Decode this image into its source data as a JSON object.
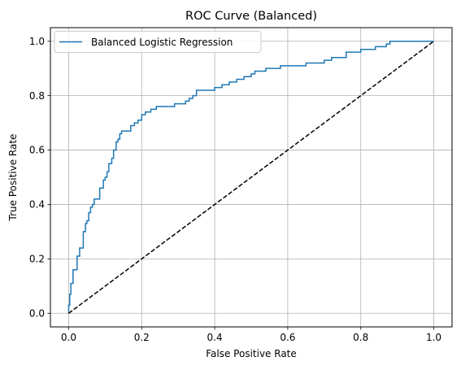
{
  "chart_data": {
    "type": "line",
    "title": "ROC Curve (Balanced)",
    "xlabel": "False Positive Rate",
    "ylabel": "True Positive Rate",
    "xlim": [
      -0.05,
      1.05
    ],
    "ylim": [
      -0.05,
      1.05
    ],
    "xticks": [
      0.0,
      0.2,
      0.4,
      0.6,
      0.8,
      1.0
    ],
    "yticks": [
      0.0,
      0.2,
      0.4,
      0.6,
      0.8,
      1.0
    ],
    "xtick_labels": [
      "0.0",
      "0.2",
      "0.4",
      "0.6",
      "0.8",
      "1.0"
    ],
    "ytick_labels": [
      "0.0",
      "0.2",
      "0.4",
      "0.6",
      "0.8",
      "1.0"
    ],
    "grid": true,
    "legend_position": "upper-left",
    "series": [
      {
        "name": "Balanced Logistic Regression",
        "color": "#1f77b4",
        "style": "solid",
        "x": [
          0.0,
          0.0,
          0.003,
          0.003,
          0.006,
          0.006,
          0.012,
          0.012,
          0.023,
          0.023,
          0.03,
          0.03,
          0.04,
          0.04,
          0.046,
          0.046,
          0.05,
          0.05,
          0.055,
          0.055,
          0.06,
          0.06,
          0.065,
          0.065,
          0.07,
          0.07,
          0.075,
          0.075,
          0.085,
          0.085,
          0.095,
          0.095,
          0.1,
          0.1,
          0.105,
          0.105,
          0.11,
          0.11,
          0.118,
          0.118,
          0.123,
          0.123,
          0.13,
          0.13,
          0.135,
          0.135,
          0.14,
          0.14,
          0.145,
          0.145,
          0.15,
          0.15,
          0.17,
          0.17,
          0.18,
          0.18,
          0.19,
          0.19,
          0.2,
          0.2,
          0.21,
          0.21,
          0.225,
          0.225,
          0.24,
          0.24,
          0.29,
          0.29,
          0.32,
          0.32,
          0.33,
          0.33,
          0.34,
          0.34,
          0.35,
          0.35,
          0.4,
          0.4,
          0.42,
          0.42,
          0.44,
          0.44,
          0.46,
          0.46,
          0.48,
          0.48,
          0.5,
          0.5,
          0.51,
          0.51,
          0.52,
          0.52,
          0.54,
          0.54,
          0.58,
          0.58,
          0.65,
          0.65,
          0.7,
          0.7,
          0.72,
          0.72,
          0.76,
          0.76,
          0.8,
          0.8,
          0.84,
          0.84,
          0.87,
          0.87,
          0.88,
          0.88,
          0.89,
          0.89,
          1.0
        ],
        "y": [
          0.0,
          0.03,
          0.03,
          0.07,
          0.07,
          0.11,
          0.11,
          0.16,
          0.16,
          0.21,
          0.21,
          0.24,
          0.24,
          0.3,
          0.3,
          0.33,
          0.33,
          0.34,
          0.34,
          0.37,
          0.37,
          0.39,
          0.39,
          0.4,
          0.4,
          0.42,
          0.42,
          0.42,
          0.42,
          0.46,
          0.46,
          0.49,
          0.49,
          0.5,
          0.5,
          0.52,
          0.52,
          0.55,
          0.55,
          0.57,
          0.57,
          0.6,
          0.6,
          0.63,
          0.63,
          0.64,
          0.64,
          0.66,
          0.66,
          0.67,
          0.67,
          0.67,
          0.67,
          0.69,
          0.69,
          0.7,
          0.7,
          0.71,
          0.71,
          0.73,
          0.73,
          0.74,
          0.74,
          0.75,
          0.75,
          0.76,
          0.76,
          0.77,
          0.77,
          0.78,
          0.78,
          0.79,
          0.79,
          0.8,
          0.8,
          0.82,
          0.82,
          0.83,
          0.83,
          0.84,
          0.84,
          0.85,
          0.85,
          0.86,
          0.86,
          0.87,
          0.87,
          0.88,
          0.88,
          0.89,
          0.89,
          0.89,
          0.89,
          0.9,
          0.9,
          0.91,
          0.91,
          0.92,
          0.92,
          0.93,
          0.93,
          0.94,
          0.94,
          0.96,
          0.96,
          0.97,
          0.97,
          0.98,
          0.98,
          0.99,
          0.99,
          1.0,
          1.0,
          1.0,
          1.0
        ]
      },
      {
        "color": "#000000",
        "style": "dashed",
        "x": [
          0.0,
          1.0
        ],
        "y": [
          0.0,
          1.0
        ]
      }
    ]
  }
}
